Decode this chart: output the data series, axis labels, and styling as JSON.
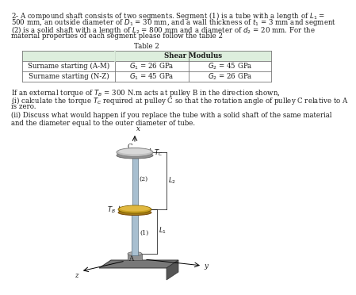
{
  "title_lines": [
    "2- A compound shaft consists of two segments. Segment (1) is a tube with a length of $L_1$ =",
    "500 mm, an outside diameter of $D_1$ = 30 mm, and a wall thickness of $t_1$ = 3 mm and segment",
    "(2) is a solid shaft with a length of $L_2$ = 800 mm and a diameter of $d_2$ = 20 mm. For the",
    "material properties of each segment please follow the table 2"
  ],
  "table_title": "Table 2",
  "table_rows": [
    [
      "Surname starting (A-M)",
      "$G_1$ = 26 GPa",
      "$G_2$ = 45 GPa"
    ],
    [
      "Surname starting (N-Z)",
      "$G_1$ = 45 GPa",
      "$G_2$ = 26 GPa"
    ]
  ],
  "body_text1": "If an external torque of $T_B$ = 300 N.m acts at pulley B in the direction shown,",
  "body_text2": "(i) calculate the torque $T_C$ required at pulley C so that the rotation angle of pulley C relative to A",
  "body_text2b": "is zero.",
  "body_text3": "(ii) Discuss what would happen if you replace the tube with a solid shaft of the same material",
  "body_text3b": "and the diameter equal to the outer diameter of tube.",
  "bg_color": "#ffffff",
  "table_header_bg": "#ddeedd",
  "table_border_color": "#777777",
  "text_color": "#1a1a1a",
  "font_size": 6.2,
  "shaft_color": "#a8bfd0",
  "pulley_c_color": "#c0c0c0",
  "pulley_b_color": "#c8a020",
  "base_color": "#686868"
}
